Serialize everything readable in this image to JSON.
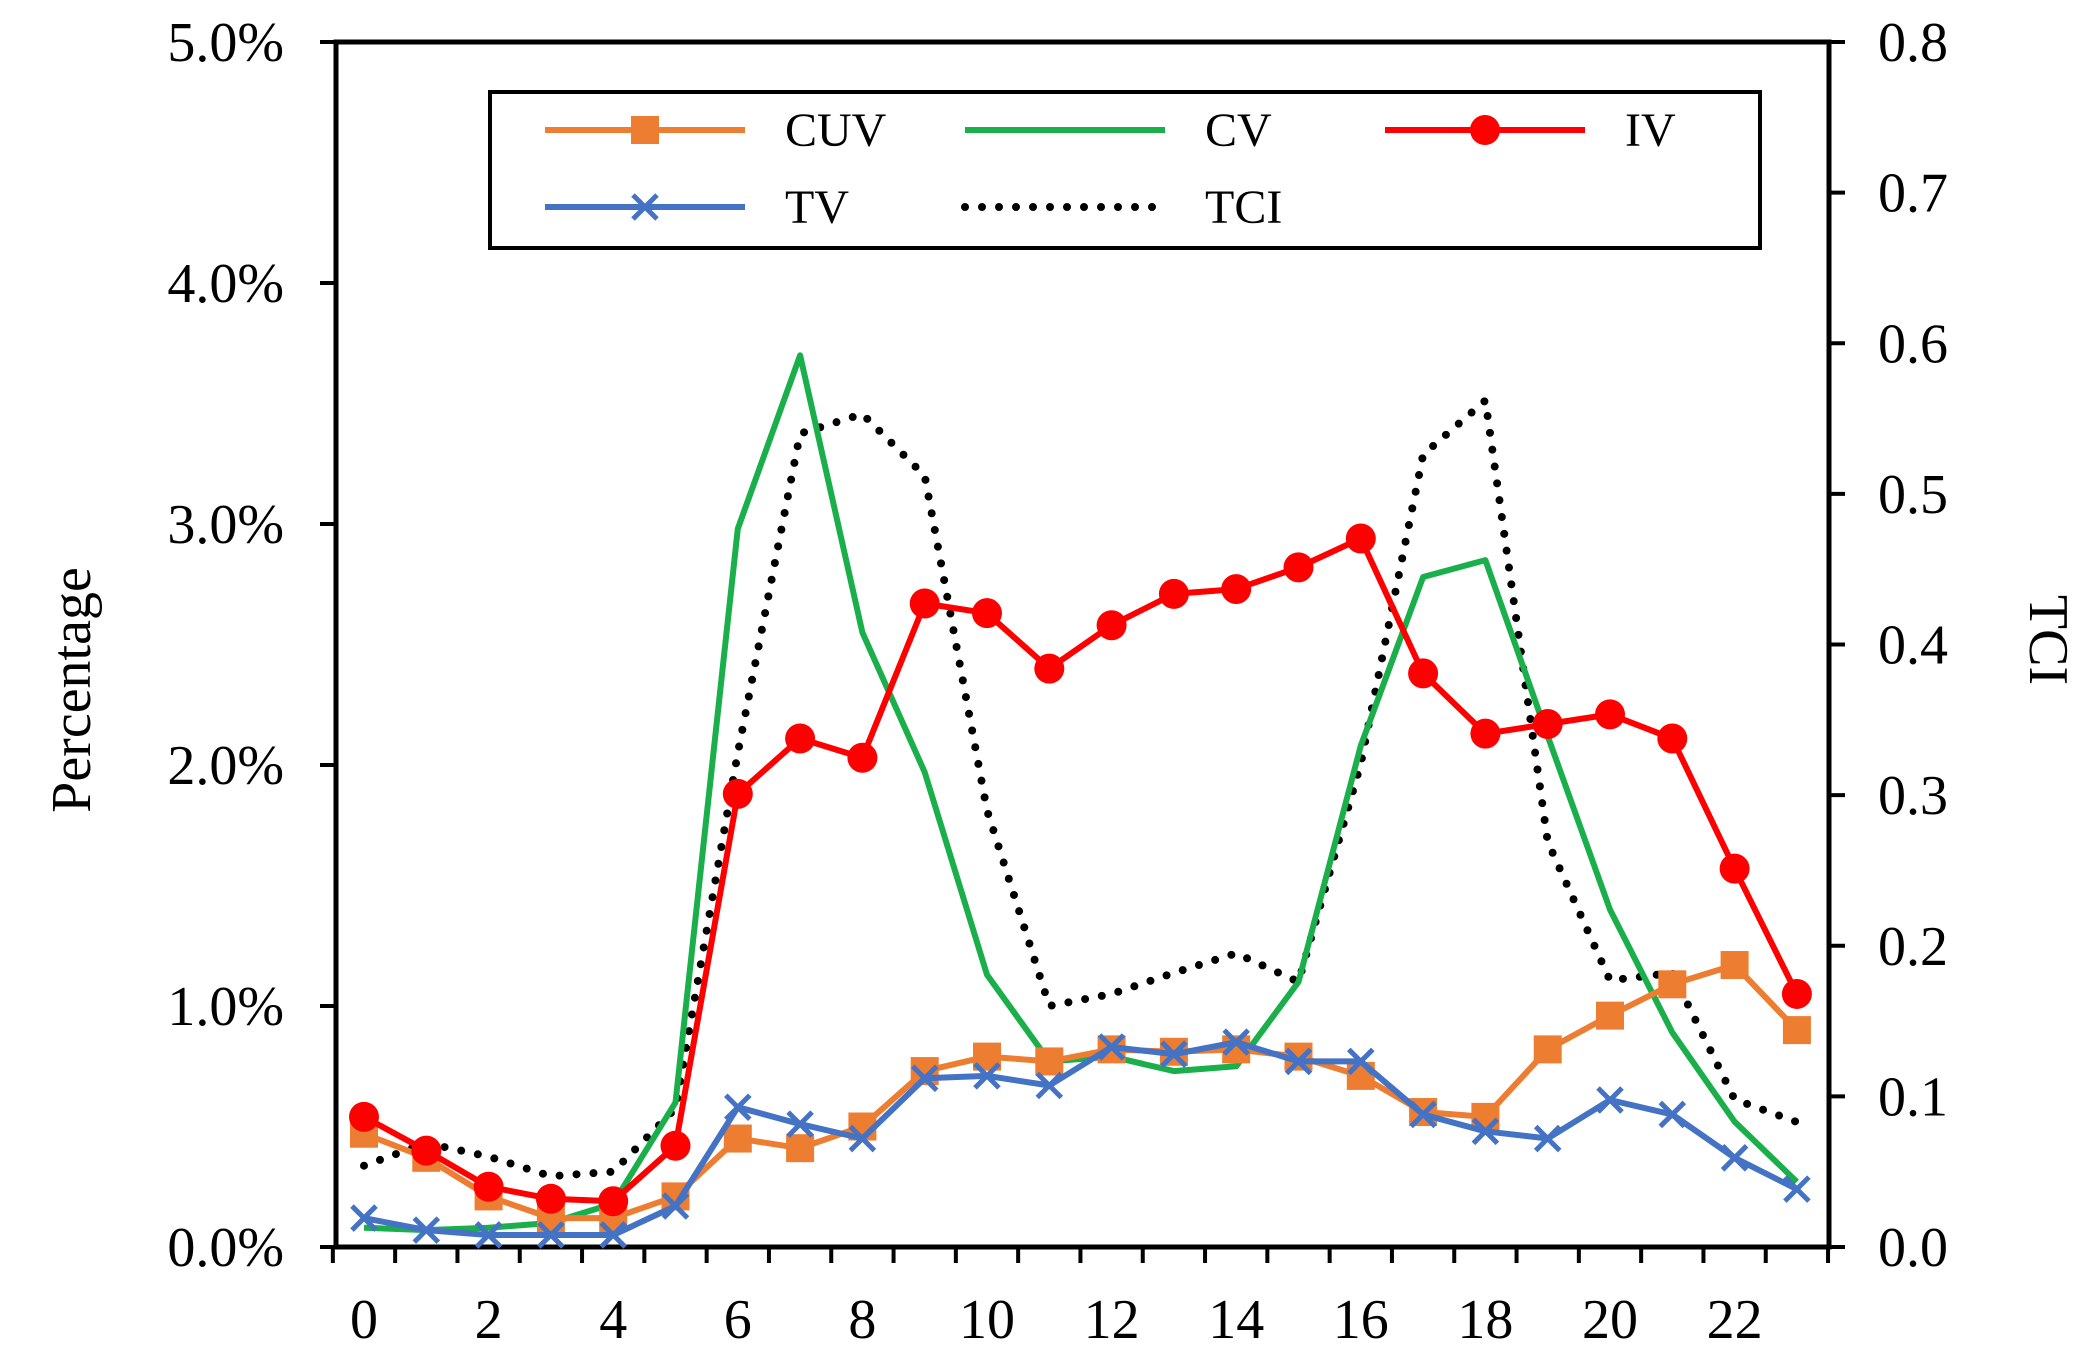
{
  "chart_data": {
    "type": "line",
    "title": "",
    "xlabel": "",
    "ylabel": "Percentage",
    "y2label": "TCI",
    "x": [
      0,
      1,
      2,
      3,
      4,
      5,
      6,
      7,
      8,
      9,
      10,
      11,
      12,
      13,
      14,
      15,
      16,
      17,
      18,
      19,
      20,
      21,
      22,
      23
    ],
    "x_tick_labels": [
      "0",
      "2",
      "4",
      "6",
      "8",
      "10",
      "12",
      "14",
      "16",
      "18",
      "20",
      "22"
    ],
    "x_tick_values": [
      0,
      2,
      4,
      6,
      8,
      10,
      12,
      14,
      16,
      18,
      20,
      22
    ],
    "ylim": [
      0,
      5.0
    ],
    "y_tick_labels": [
      "0.0%",
      "1.0%",
      "2.0%",
      "3.0%",
      "4.0%",
      "5.0%"
    ],
    "y2lim": [
      0,
      0.8
    ],
    "y2_tick_labels": [
      "0.0",
      "0.1",
      "0.2",
      "0.3",
      "0.4",
      "0.5",
      "0.6",
      "0.7",
      "0.8"
    ],
    "series": [
      {
        "name": "CUV",
        "axis": "left",
        "color": "#ED7D31",
        "marker": "square",
        "style": "solid",
        "values": [
          0.47,
          0.37,
          0.21,
          0.12,
          0.12,
          0.21,
          0.45,
          0.41,
          0.5,
          0.73,
          0.79,
          0.77,
          0.82,
          0.81,
          0.82,
          0.79,
          0.71,
          0.56,
          0.54,
          0.82,
          0.96,
          1.09,
          1.17,
          0.9
        ]
      },
      {
        "name": "CV",
        "axis": "left",
        "color": "#1AAF4B",
        "marker": "none",
        "style": "solid",
        "values": [
          0.08,
          0.07,
          0.08,
          0.1,
          0.18,
          0.6,
          2.98,
          3.7,
          2.55,
          1.97,
          1.13,
          0.77,
          0.79,
          0.73,
          0.75,
          1.1,
          2.08,
          2.78,
          2.85,
          2.12,
          1.4,
          0.89,
          0.52,
          0.27
        ]
      },
      {
        "name": "IV",
        "axis": "left",
        "color": "#FF0000",
        "marker": "circle",
        "style": "solid",
        "values": [
          0.54,
          0.4,
          0.25,
          0.2,
          0.19,
          0.42,
          1.88,
          2.11,
          2.03,
          2.67,
          2.63,
          2.4,
          2.58,
          2.71,
          2.73,
          2.82,
          2.94,
          2.38,
          2.13,
          2.17,
          2.21,
          2.11,
          1.57,
          1.05
        ]
      },
      {
        "name": "TV",
        "axis": "left",
        "color": "#4472C4",
        "marker": "x",
        "style": "solid",
        "values": [
          0.12,
          0.07,
          0.05,
          0.05,
          0.05,
          0.17,
          0.58,
          0.51,
          0.45,
          0.7,
          0.71,
          0.67,
          0.83,
          0.8,
          0.85,
          0.77,
          0.77,
          0.55,
          0.48,
          0.45,
          0.61,
          0.55,
          0.37,
          0.24
        ]
      },
      {
        "name": "TCI",
        "axis": "right",
        "color": "#000000",
        "marker": "none",
        "style": "dotted",
        "values": [
          0.054,
          0.069,
          0.06,
          0.047,
          0.05,
          0.092,
          0.328,
          0.54,
          0.553,
          0.512,
          0.29,
          0.16,
          0.168,
          0.182,
          0.195,
          0.176,
          0.321,
          0.526,
          0.562,
          0.269,
          0.177,
          0.182,
          0.098,
          0.083
        ]
      }
    ],
    "legend": {
      "placement": "top",
      "entries": [
        "CUV",
        "CV",
        "IV",
        "TV",
        "TCI"
      ]
    },
    "grid": false
  }
}
